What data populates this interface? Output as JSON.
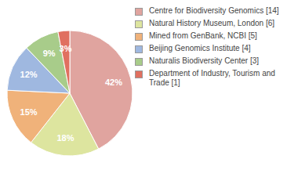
{
  "chart_data": {
    "type": "pie",
    "categories": [
      "Centre for Biodiversity Genomics [14]",
      "Natural History Museum, London [6]",
      "Mined from GenBank, NCBI [5]",
      "Beijing Genomics Institute [4]",
      "Naturalis Biodiversity Center [3]",
      "Department of Industry, Tourism and Trade [1]"
    ],
    "values": [
      42,
      18,
      15,
      12,
      9,
      3
    ],
    "value_labels": [
      "42%",
      "18%",
      "15%",
      "12%",
      "9%",
      "3%"
    ],
    "colors": [
      "#e0a49f",
      "#dde59f",
      "#f0b27a",
      "#9fb8e0",
      "#a8cc8a",
      "#e07060"
    ],
    "data_labels": true,
    "legend": "right"
  }
}
